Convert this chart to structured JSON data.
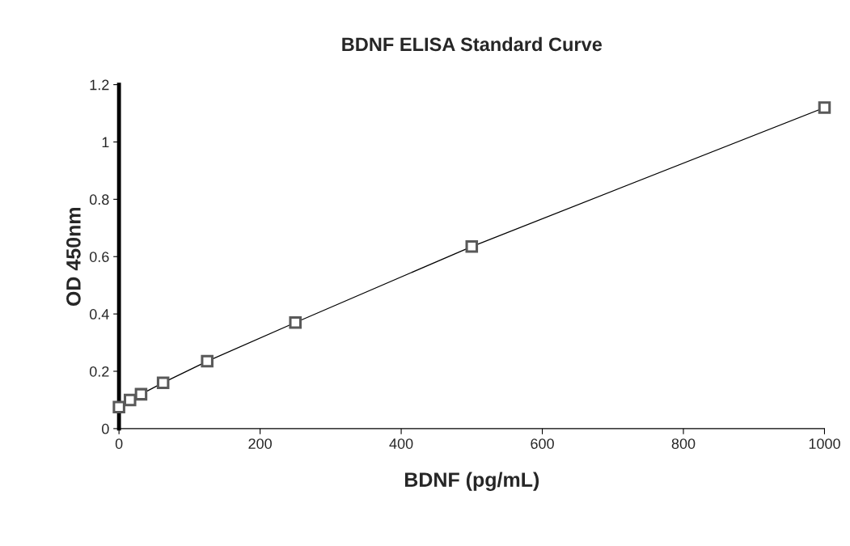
{
  "chart_data": {
    "type": "line",
    "title": "BDNF ELISA Standard Curve",
    "xlabel": "BDNF (pg/mL)",
    "ylabel": "OD 450nm",
    "x": [
      0,
      15.6,
      31.25,
      62.5,
      125,
      250,
      500,
      1000
    ],
    "series": [
      {
        "color": "#595959",
        "values": [
          0.075,
          0.1,
          0.12,
          0.16,
          0.235,
          0.37,
          0.635,
          1.12
        ]
      }
    ],
    "xlim": [
      0,
      1000
    ],
    "ylim": [
      0,
      1.2
    ],
    "xticks": [
      0,
      200,
      400,
      600,
      800,
      1000
    ],
    "yticks": [
      0,
      0.2,
      0.4,
      0.6,
      0.8,
      1,
      1.2
    ],
    "marker": "square",
    "line_style": "solid",
    "grid": false,
    "legend": false
  }
}
